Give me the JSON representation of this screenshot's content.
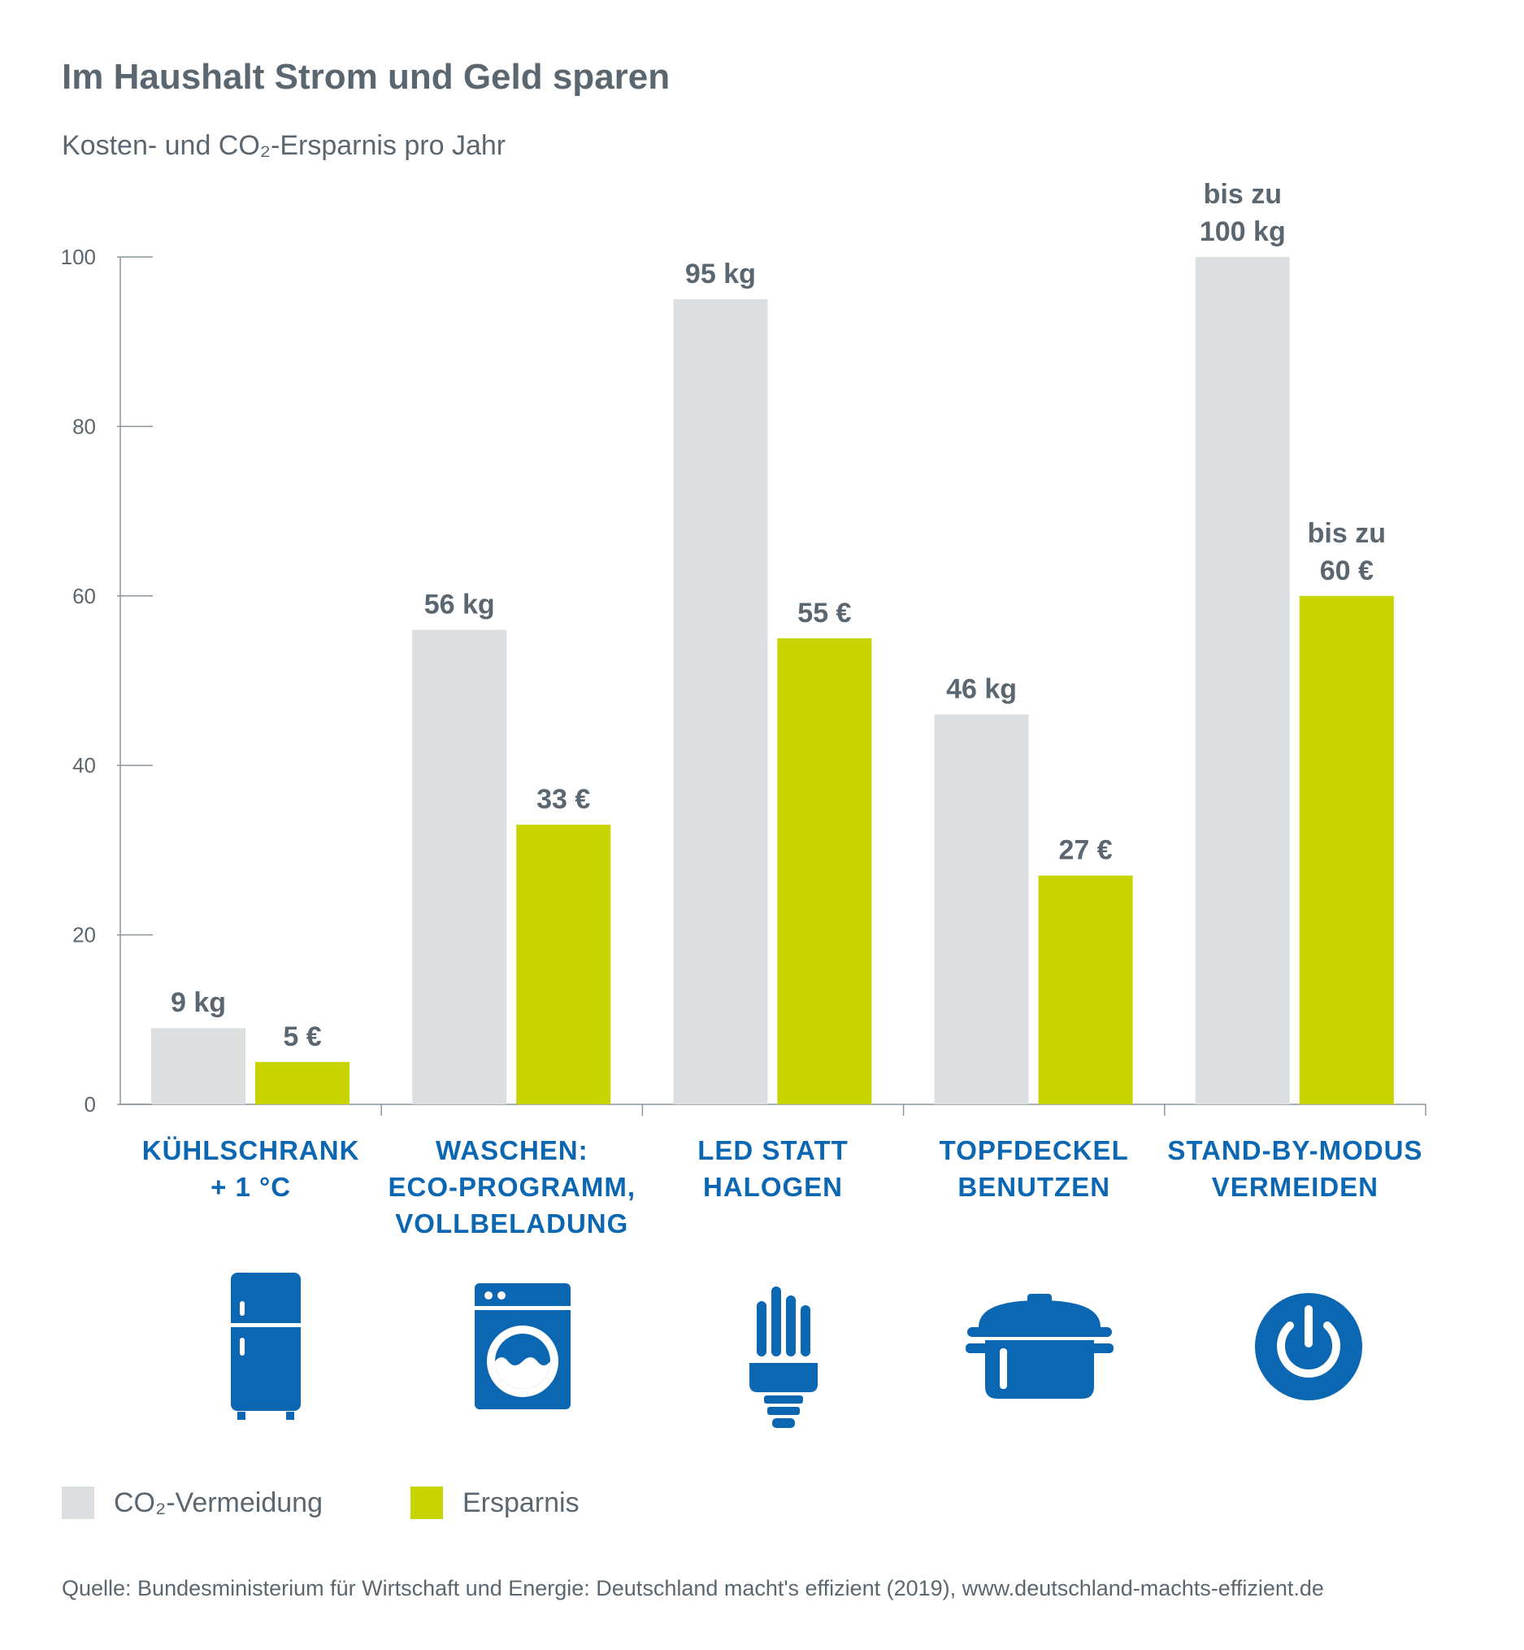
{
  "title": "Im Haushalt Strom und Geld sparen",
  "subtitle": "Kosten- und CO₂-Ersparnis pro Jahr",
  "colors": {
    "co2": "#dcdfe0",
    "savings": "#c8d400",
    "accent": "#0b67b2",
    "text": "#5b6770"
  },
  "chart_data": {
    "type": "bar",
    "title": "Im Haushalt Strom und Geld sparen",
    "subtitle": "Kosten- und CO₂-Ersparnis pro Jahr",
    "xlabel": "",
    "ylabel": "",
    "ylim": [
      0,
      100
    ],
    "yticks": [
      0,
      20,
      40,
      60,
      80,
      100
    ],
    "grid": false,
    "categories": [
      "KÜHLSCHRANK + 1 °C",
      "WASCHEN: ECO-PROGRAMM, VOLLBELADUNG",
      "LED STATT HALOGEN",
      "TOPFDECKEL BENUTZEN",
      "STAND-BY-MODUS VERMEIDEN"
    ],
    "category_lines": [
      [
        "KÜHLSCHRANK",
        "+ 1 °C"
      ],
      [
        "WASCHEN:",
        "ECO-PROGRAMM,",
        "VOLLBELADUNG"
      ],
      [
        "LED STATT",
        "HALOGEN"
      ],
      [
        "TOPFDECKEL",
        "BENUTZEN"
      ],
      [
        "STAND-BY-MODUS",
        "VERMEIDEN"
      ]
    ],
    "series": [
      {
        "name": "CO₂-Vermeidung",
        "values": [
          9,
          56,
          95,
          46,
          100
        ],
        "labels": [
          [
            "9 kg"
          ],
          [
            "56 kg"
          ],
          [
            "95 kg"
          ],
          [
            "46 kg"
          ],
          [
            "bis zu",
            "100 kg"
          ]
        ]
      },
      {
        "name": "Ersparnis",
        "values": [
          5,
          33,
          55,
          27,
          60
        ],
        "labels": [
          [
            "5 €"
          ],
          [
            "33 €"
          ],
          [
            "55 €"
          ],
          [
            "27 €"
          ],
          [
            "bis zu",
            "60 €"
          ]
        ]
      }
    ],
    "legend": "bottom-left",
    "icons": [
      "fridge-icon",
      "washing-machine-icon",
      "led-bulb-icon",
      "pot-icon",
      "power-icon"
    ]
  },
  "legend": [
    {
      "label": "CO₂-Vermeidung",
      "color": "#dcdfe0"
    },
    {
      "label": "Ersparnis",
      "color": "#c8d400"
    }
  ],
  "source": "Quelle: Bundesministerium für Wirtschaft und Energie: Deutschland macht's effizient (2019), www.deutschland-machts-effizient.de"
}
